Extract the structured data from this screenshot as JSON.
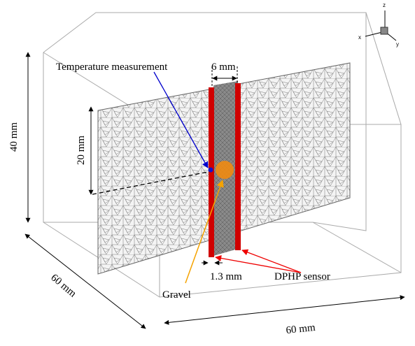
{
  "labels": {
    "temperature": "Temperature measurement",
    "spacing": "6 mm",
    "depth": "20 mm",
    "height": "40 mm",
    "gravel": "Gravel",
    "rod_diameter": "1.3 mm",
    "sensor": "DPHP sensor",
    "length_side": "60 mm",
    "length_front": "60 mm"
  },
  "axes": {
    "z": "z",
    "x": "x",
    "y": "y"
  }
}
